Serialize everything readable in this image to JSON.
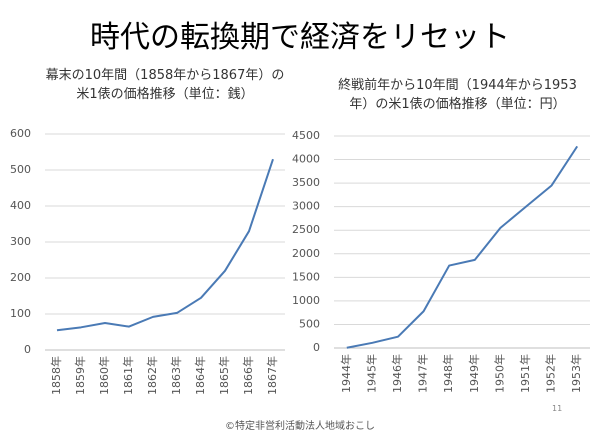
{
  "title": "時代の転換期で経済をリセット",
  "chart_data": [
    {
      "type": "line",
      "title": "幕末の10年間（1858年から1867年）の米1俵の価格推移（単位：銭）",
      "categories": [
        "1858年",
        "1859年",
        "1860年",
        "1861年",
        "1862年",
        "1863年",
        "1864年",
        "1865年",
        "1866年",
        "1867年"
      ],
      "values": [
        55,
        63,
        75,
        65,
        92,
        103,
        145,
        220,
        330,
        530
      ],
      "color": "#4a7ab5",
      "ylim": [
        0,
        600
      ],
      "yticks": [
        0,
        100,
        200,
        300,
        400,
        500,
        600
      ],
      "grid": true
    },
    {
      "type": "line",
      "title": "終戦前年から10年間（1944年から1953年）の米1俵の価格推移（単位：円）",
      "categories": [
        "1944年",
        "1945年",
        "1946年",
        "1947年",
        "1948年",
        "1949年",
        "1950年",
        "1951年",
        "1952年",
        "1953年"
      ],
      "values": [
        5,
        110,
        240,
        780,
        1750,
        1870,
        2550,
        3000,
        3450,
        4280
      ],
      "color": "#4a7ab5",
      "ylim": [
        0,
        4500
      ],
      "yticks": [
        0,
        500,
        1000,
        1500,
        2000,
        2500,
        3000,
        3500,
        4000,
        4500
      ],
      "grid": true
    }
  ],
  "page_number": "11",
  "footer": "©特定非営利活動法人地域おこし"
}
